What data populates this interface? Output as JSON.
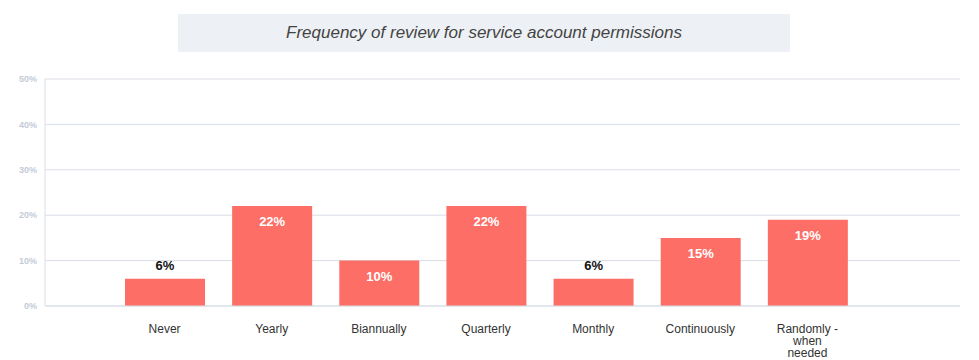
{
  "chart_data": {
    "type": "bar",
    "title": "Frequency of review for service account permissions",
    "categories": [
      "Never",
      "Yearly",
      "Biannually",
      "Quarterly",
      "Monthly",
      "Continuously",
      "Randomly - when needed"
    ],
    "values": [
      6,
      22,
      10,
      22,
      6,
      15,
      19
    ],
    "value_labels": [
      "6%",
      "22%",
      "10%",
      "22%",
      "6%",
      "15%",
      "19%"
    ],
    "color": "#fd6e66",
    "ylim": [
      0,
      50
    ],
    "yticks": [
      {
        "value": 0,
        "label": "0%"
      },
      {
        "value": 10,
        "label": "10%"
      },
      {
        "value": 20,
        "label": "20%"
      },
      {
        "value": 30,
        "label": "30%"
      },
      {
        "value": 40,
        "label": "40%"
      },
      {
        "value": 50,
        "label": "50%"
      }
    ],
    "grid": true,
    "data_labels": true
  }
}
